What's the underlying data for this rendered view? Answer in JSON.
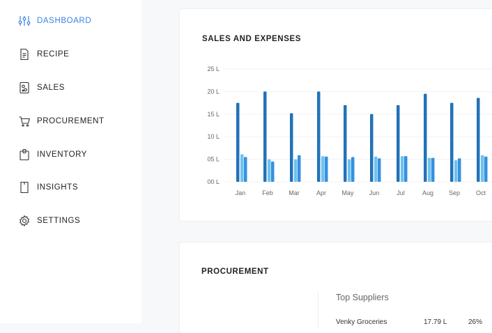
{
  "nav": {
    "items": [
      {
        "label": "DASHBOARD",
        "icon": "sliders-icon",
        "active": true
      },
      {
        "label": "RECIPE",
        "icon": "recipe-icon",
        "active": false
      },
      {
        "label": "SALES",
        "icon": "sales-icon",
        "active": false
      },
      {
        "label": "PROCUREMENT",
        "icon": "cart-icon",
        "active": false
      },
      {
        "label": "INVENTORY",
        "icon": "inventory-icon",
        "active": false
      },
      {
        "label": "INSIGHTS",
        "icon": "insights-icon",
        "active": false
      },
      {
        "label": "SETTINGS",
        "icon": "gear-icon",
        "active": false
      }
    ]
  },
  "colors": {
    "accent": "#3b82e6",
    "series_dark": "#2272b8",
    "series_light": "#6dc2ee",
    "series_mid": "#3591e0"
  },
  "sales_card": {
    "title": "SALES AND EXPENSES"
  },
  "procurement_card": {
    "title": "PROCUREMENT",
    "top_suppliers_title": "Top Suppliers",
    "supplier": {
      "name": "Venky Groceries",
      "amount": "17.79 L",
      "percent": "26%"
    }
  },
  "chart_data": {
    "type": "bar",
    "categories": [
      "Jan",
      "Feb",
      "Mar",
      "Apr",
      "May",
      "Jun",
      "Jul",
      "Aug",
      "Sep",
      "Oct"
    ],
    "ytick_labels": [
      "00 L",
      "05 L",
      "10 L",
      "15 L",
      "20 L",
      "25 L"
    ],
    "ylim": [
      0,
      25
    ],
    "series": [
      {
        "values": [
          17.5,
          20,
          15.2,
          20,
          17,
          15,
          17,
          19.5,
          17.5,
          18.6
        ]
      },
      {
        "values": [
          6.1,
          5,
          5,
          5.7,
          5,
          5.6,
          5.7,
          5.3,
          4.8,
          5.9
        ]
      },
      {
        "values": [
          5.5,
          4.5,
          5.9,
          5.6,
          5.5,
          5.2,
          5.7,
          5.3,
          5.2,
          5.6
        ]
      }
    ]
  }
}
